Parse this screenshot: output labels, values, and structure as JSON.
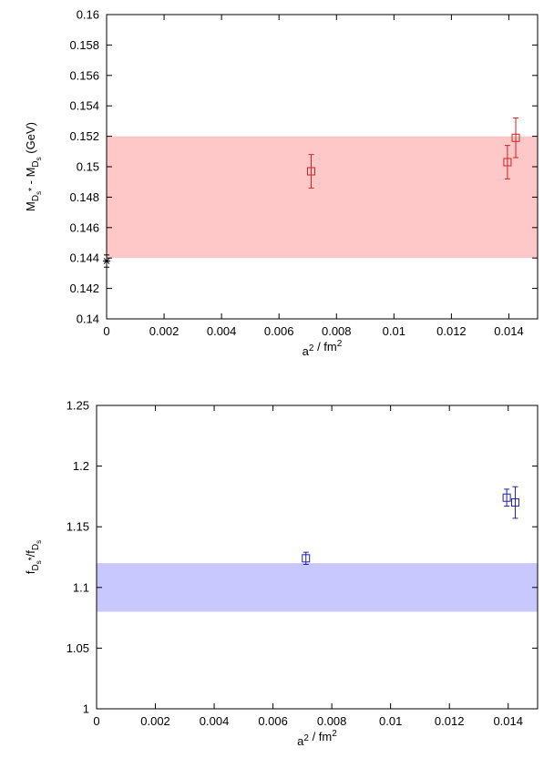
{
  "chart_data": [
    {
      "type": "scatter",
      "xlabel": "a² / fm²",
      "ylabel": "M_{D_s*} - M_{D_s} (GeV)",
      "xlim": [
        0,
        0.015
      ],
      "ylim": [
        0.14,
        0.16
      ],
      "x_ticks": [
        "0",
        "0.002",
        "0.004",
        "0.006",
        "0.008",
        "0.01",
        "0.012",
        "0.014"
      ],
      "y_ticks": [
        "0.14",
        "0.142",
        "0.144",
        "0.146",
        "0.148",
        "0.15",
        "0.152",
        "0.154",
        "0.156",
        "0.158",
        "0.16"
      ],
      "band": {
        "ymin": 0.144,
        "ymax": 0.152,
        "color": "#ffc8c8"
      },
      "series": [
        {
          "marker": "open-square",
          "color": "#d62020",
          "points": [
            {
              "x": 0.00712,
              "y": 0.1497,
              "err": 0.0011
            },
            {
              "x": 0.01395,
              "y": 0.1503,
              "err": 0.0011
            },
            {
              "x": 0.01424,
              "y": 0.1519,
              "err": 0.0013
            }
          ]
        },
        {
          "marker": "star",
          "color": "#000000",
          "points": [
            {
              "x": 0.0,
              "y": 0.1438,
              "err": 0.0004
            }
          ]
        }
      ]
    },
    {
      "type": "scatter",
      "xlabel": "a² / fm²",
      "ylabel": "f_{D_s*}/f_{D_s}",
      "xlim": [
        0,
        0.015
      ],
      "ylim": [
        1.0,
        1.25
      ],
      "x_ticks": [
        "0",
        "0.002",
        "0.004",
        "0.006",
        "0.008",
        "0.01",
        "0.012",
        "0.014"
      ],
      "y_ticks": [
        "1",
        "1.05",
        "1.1",
        "1.15",
        "1.2",
        "1.25"
      ],
      "band": {
        "ymin": 1.08,
        "ymax": 1.12,
        "color": "#c8c8ff"
      },
      "series": [
        {
          "marker": "open-square",
          "color": "#2020b0",
          "points": [
            {
              "x": 0.00712,
              "y": 1.124,
              "err": 0.005
            },
            {
              "x": 0.01395,
              "y": 1.174,
              "err": 0.007
            },
            {
              "x": 0.01424,
              "y": 1.17,
              "err": 0.013
            }
          ]
        }
      ]
    }
  ]
}
